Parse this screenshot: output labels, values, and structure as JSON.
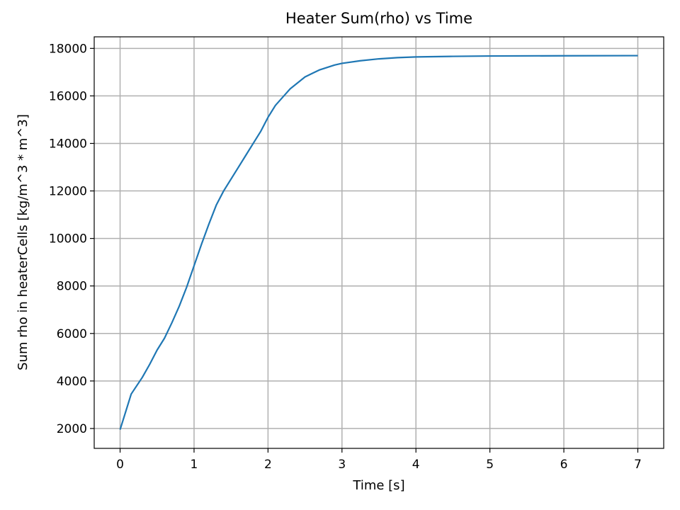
{
  "chart_data": {
    "type": "line",
    "title": "Heater Sum(rho) vs Time",
    "x_label": "Time [s]",
    "y_label": "Sum rho in heaterCells [kg/m^3 * m^3]",
    "x": [
      0,
      0.15,
      0.3,
      0.4,
      0.5,
      0.6,
      0.7,
      0.8,
      0.9,
      1.0,
      1.1,
      1.2,
      1.3,
      1.4,
      1.5,
      1.6,
      1.7,
      1.8,
      1.9,
      2.0,
      2.1,
      2.2,
      2.3,
      2.4,
      2.5,
      2.6,
      2.7,
      2.8,
      2.9,
      3.0,
      3.25,
      3.5,
      3.75,
      4.0,
      4.5,
      5,
      6,
      7
    ],
    "series": [
      {
        "name": "Sum rho",
        "color": "#1f77b4",
        "values": [
          1950,
          3450,
          4150,
          4700,
          5300,
          5800,
          6450,
          7150,
          7950,
          8850,
          9750,
          10600,
          11400,
          12000,
          12500,
          13000,
          13500,
          14000,
          14500,
          15100,
          15600,
          15950,
          16300,
          16550,
          16800,
          16950,
          17100,
          17200,
          17300,
          17370,
          17480,
          17560,
          17610,
          17640,
          17665,
          17680,
          17690,
          17695
        ]
      }
    ],
    "xlim": [
      -0.35,
      7.35
    ],
    "ylim": [
      1163,
      18487
    ],
    "xticks": [
      0,
      1,
      2,
      3,
      4,
      5,
      6,
      7
    ],
    "yticks": [
      2000,
      4000,
      6000,
      8000,
      10000,
      12000,
      14000,
      16000,
      18000
    ],
    "grid": true
  }
}
